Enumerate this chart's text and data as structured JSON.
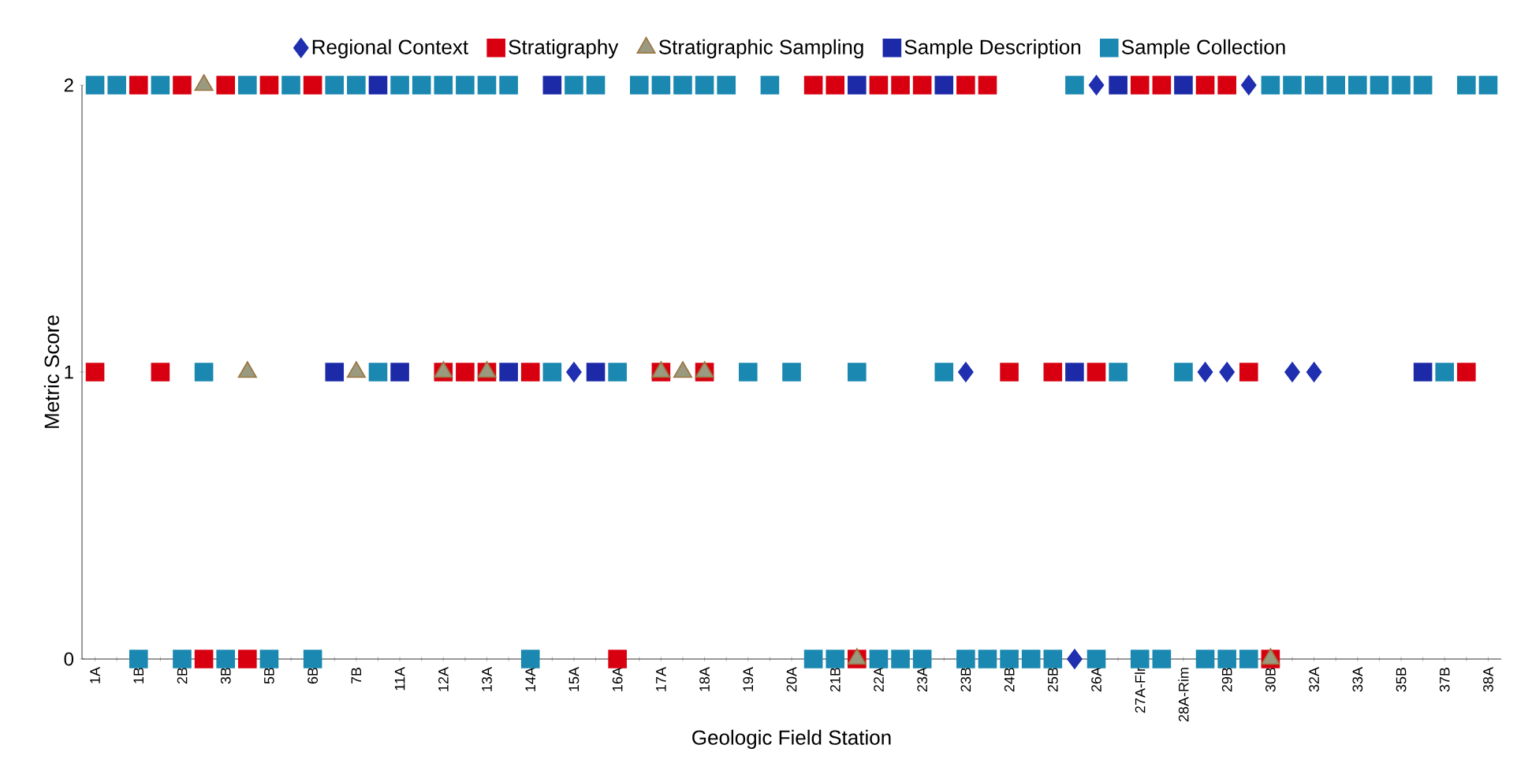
{
  "chart_data": {
    "type": "scatter",
    "xlabel": "Geologic Field Station",
    "ylabel": "Metric Score",
    "categories": [
      "1A",
      null,
      "1B",
      null,
      "2B",
      null,
      "3B",
      null,
      "5B",
      null,
      "6B",
      null,
      "7B",
      null,
      "11A",
      null,
      "12A",
      null,
      "13A",
      null,
      "14A",
      null,
      "15A",
      null,
      "16A",
      null,
      "17A",
      null,
      "18A",
      null,
      "19A",
      null,
      "20A",
      null,
      "21B",
      null,
      "22A",
      null,
      "23A",
      null,
      "23B",
      null,
      "24B",
      null,
      "25B",
      null,
      "26A",
      null,
      "27A-Flr",
      null,
      "28A-Rim",
      null,
      "29B",
      null,
      "30B",
      null,
      "32A",
      null,
      "33A",
      null,
      "35B",
      null,
      "37B",
      null,
      "38A"
    ],
    "ylim": [
      0,
      2
    ],
    "yticks": [
      0,
      1,
      2
    ],
    "legend": "top",
    "series": [
      {
        "name": "Regional Context",
        "color": "#1f2fb0",
        "marker": "diamond",
        "values": [
          null,
          null,
          null,
          null,
          null,
          null,
          null,
          null,
          null,
          null,
          null,
          null,
          null,
          null,
          null,
          null,
          null,
          null,
          null,
          null,
          null,
          null,
          1,
          null,
          null,
          null,
          null,
          null,
          null,
          null,
          null,
          null,
          null,
          null,
          null,
          null,
          null,
          null,
          null,
          null,
          1,
          null,
          null,
          null,
          null,
          0,
          2,
          null,
          null,
          null,
          null,
          1,
          1,
          2,
          null,
          1,
          1,
          null,
          null,
          null,
          null,
          null,
          null,
          null,
          null
        ]
      },
      {
        "name": "Stratigraphy",
        "color": "#d80010",
        "marker": "square",
        "values": [
          1,
          null,
          2,
          1,
          2,
          0,
          2,
          0,
          2,
          null,
          2,
          null,
          null,
          null,
          null,
          null,
          1,
          1,
          1,
          null,
          1,
          null,
          null,
          null,
          0,
          null,
          1,
          null,
          1,
          null,
          null,
          null,
          null,
          2,
          2,
          0,
          2,
          2,
          2,
          null,
          2,
          2,
          1,
          null,
          1,
          null,
          1,
          null,
          2,
          2,
          null,
          2,
          2,
          1,
          0,
          null,
          null,
          null,
          null,
          null,
          null,
          null,
          null,
          1,
          null
        ]
      },
      {
        "name": "Stratigraphic Sampling",
        "color": "#9a9a80",
        "marker": "triangle",
        "values": [
          null,
          null,
          null,
          null,
          null,
          2,
          null,
          1,
          null,
          null,
          null,
          null,
          1,
          null,
          null,
          null,
          1,
          null,
          1,
          null,
          null,
          null,
          null,
          null,
          null,
          null,
          1,
          1,
          1,
          null,
          null,
          null,
          null,
          null,
          null,
          0,
          null,
          null,
          null,
          null,
          null,
          null,
          null,
          null,
          null,
          null,
          null,
          null,
          null,
          null,
          null,
          null,
          null,
          null,
          0,
          null,
          null,
          null,
          null,
          null,
          null,
          null,
          null,
          null,
          null
        ]
      },
      {
        "name": "Sample Description",
        "color": "#1c2aa8",
        "marker": "square",
        "values": [
          null,
          null,
          null,
          null,
          null,
          null,
          null,
          null,
          null,
          null,
          null,
          1,
          null,
          2,
          1,
          null,
          null,
          null,
          null,
          1,
          null,
          2,
          null,
          1,
          null,
          null,
          null,
          null,
          null,
          null,
          null,
          null,
          null,
          null,
          null,
          2,
          null,
          null,
          null,
          2,
          null,
          null,
          null,
          null,
          null,
          1,
          null,
          2,
          null,
          null,
          2,
          null,
          null,
          null,
          null,
          null,
          null,
          null,
          null,
          null,
          null,
          1,
          null,
          null,
          null
        ]
      },
      {
        "name": "Sample Collection",
        "color": "#1a88b0",
        "marker": "square",
        "values": [
          2,
          2,
          0,
          2,
          0,
          1,
          0,
          2,
          0,
          2,
          0,
          2,
          2,
          1,
          2,
          2,
          2,
          2,
          2,
          2,
          0,
          1,
          2,
          2,
          1,
          2,
          2,
          2,
          2,
          2,
          1,
          2,
          1,
          0,
          0,
          1,
          0,
          0,
          0,
          1,
          0,
          0,
          0,
          0,
          0,
          2,
          0,
          1,
          0,
          0,
          1,
          0,
          0,
          0,
          2,
          2,
          2,
          2,
          2,
          2,
          2,
          2,
          1,
          2,
          2
        ]
      }
    ]
  }
}
